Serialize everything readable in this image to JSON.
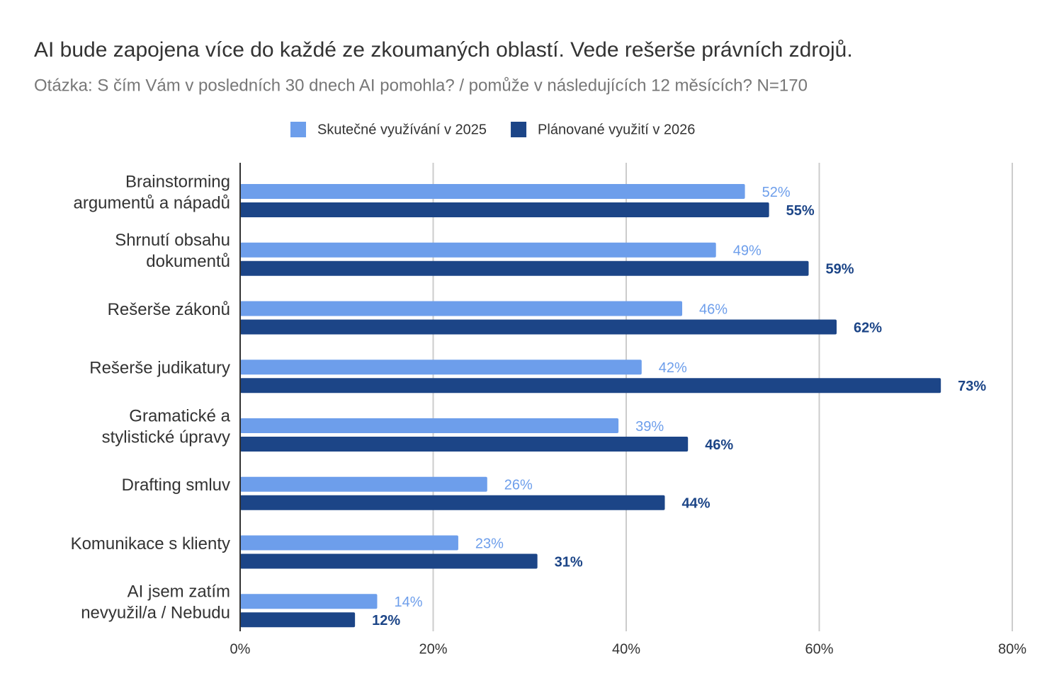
{
  "chart_data": {
    "type": "bar",
    "orientation": "horizontal",
    "title": "AI bude zapojena více do každé ze zkoumaných oblastí. Vede rešerše právních zdrojů.",
    "subtitle": "Otázka: S čím Vám v posledních 30 dnech AI pomohla? / pomůže v následujících 12 měsících? N=170",
    "categories": [
      "Brainstorming\nargumentů a nápadů",
      "Shrnutí obsahu\ndokumentů",
      "Rešerše zákonů",
      "Rešerše judikatury",
      "Gramatické a\nstylistické úpravy",
      "Drafting smluv",
      "Komunikace s klienty",
      "AI jsem zatím\nnevyužil/a / Nebudu"
    ],
    "series": [
      {
        "name": "Skutečné využívání v 2025",
        "color": "#6d9eeb",
        "values": [
          52.3,
          49.3,
          45.8,
          41.6,
          39.2,
          25.6,
          22.6,
          14.2
        ],
        "value_labels": [
          "52%",
          "49%",
          "46%",
          "42%",
          "39%",
          "26%",
          "23%",
          "14%"
        ]
      },
      {
        "name": "Plánované využití v 2026",
        "color": "#1c4587",
        "values": [
          54.8,
          58.9,
          61.8,
          72.6,
          46.4,
          44.0,
          30.8,
          11.9
        ],
        "value_labels": [
          "55%",
          "59%",
          "62%",
          "73%",
          "46%",
          "44%",
          "31%",
          "12%"
        ]
      }
    ],
    "xlim": [
      0,
      80
    ],
    "xticks": [
      {
        "value": 0,
        "label": "0%"
      },
      {
        "value": 20,
        "label": "20%"
      },
      {
        "value": 40,
        "label": "40%"
      },
      {
        "value": 60,
        "label": "60%"
      },
      {
        "value": 80,
        "label": "80%"
      }
    ],
    "grid": true,
    "legend": "top"
  }
}
